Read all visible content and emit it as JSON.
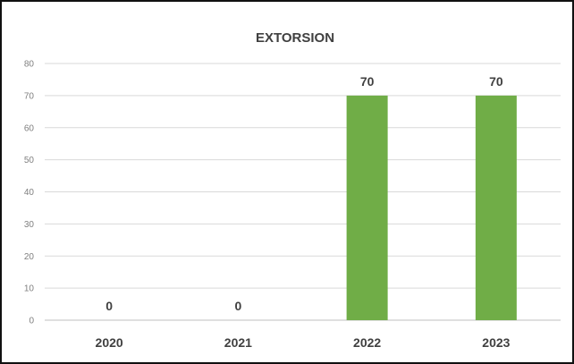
{
  "chart_data": {
    "type": "bar",
    "title": "EXTORSION",
    "categories": [
      "2020",
      "2021",
      "2022",
      "2023"
    ],
    "values": [
      0,
      0,
      70,
      70
    ],
    "ylim": [
      0,
      80
    ],
    "yticks": [
      0,
      10,
      20,
      30,
      40,
      50,
      60,
      70,
      80
    ],
    "grid": true,
    "data_labels": true,
    "bar_color": "#70ad47"
  }
}
